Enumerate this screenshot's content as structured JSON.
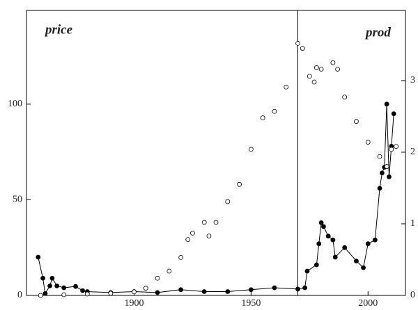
{
  "chart_data": {
    "type": "scatter",
    "y_label": "price",
    "y2_label": "prod",
    "xlim": [
      1854,
      2016
    ],
    "xticks": [
      1900,
      1950,
      2000
    ],
    "ylim": [
      0,
      149
    ],
    "yticks": [
      0,
      50,
      100
    ],
    "y2lim": [
      0,
      3.98
    ],
    "y2ticks": [
      0,
      1,
      2,
      3
    ],
    "vline": 1970,
    "series": [
      {
        "name": "price",
        "color": "#000000",
        "marker": "filled",
        "line": true,
        "x": [
          1859,
          1861,
          1862,
          1864,
          1865,
          1867,
          1870,
          1875,
          1878,
          1880,
          1890,
          1900,
          1910,
          1920,
          1930,
          1940,
          1950,
          1960,
          1970,
          1973,
          1974,
          1978,
          1979,
          1980,
          1981,
          1983,
          1985,
          1986,
          1990,
          1995,
          1998,
          2000,
          2003,
          2005,
          2006,
          2007,
          2008,
          2009,
          2010,
          2011
        ],
        "values": [
          20,
          9,
          1,
          5,
          9,
          5,
          4,
          4.7,
          2.5,
          2,
          1.5,
          2,
          1.5,
          3,
          2,
          2,
          3,
          4,
          3.3,
          4,
          12.7,
          16,
          27,
          38,
          36,
          31,
          29,
          20,
          25,
          18,
          14.5,
          27,
          29,
          56,
          64,
          67,
          100,
          62,
          78,
          95
        ]
      },
      {
        "name": "prod",
        "color": "#000000",
        "marker": "open",
        "line": false,
        "axis": "y2",
        "x": [
          1860,
          1870,
          1880,
          1890,
          1900,
          1905,
          1910,
          1915,
          1920,
          1923,
          1925,
          1930,
          1932,
          1935,
          1940,
          1945,
          1950,
          1955,
          1960,
          1965,
          1970,
          1972,
          1975,
          1977,
          1978,
          1980,
          1985,
          1987,
          1990,
          1995,
          2000,
          2005,
          2008,
          2010,
          2012
        ],
        "values": [
          0,
          0.01,
          0.02,
          0.03,
          0.05,
          0.1,
          0.24,
          0.34,
          0.53,
          0.78,
          0.87,
          1.02,
          0.83,
          1.02,
          1.31,
          1.55,
          2.04,
          2.48,
          2.57,
          2.91,
          3.52,
          3.45,
          3.06,
          2.98,
          3.18,
          3.16,
          3.25,
          3.16,
          2.77,
          2.43,
          2.14,
          1.94,
          1.8,
          2.04,
          2.08
        ]
      }
    ]
  }
}
